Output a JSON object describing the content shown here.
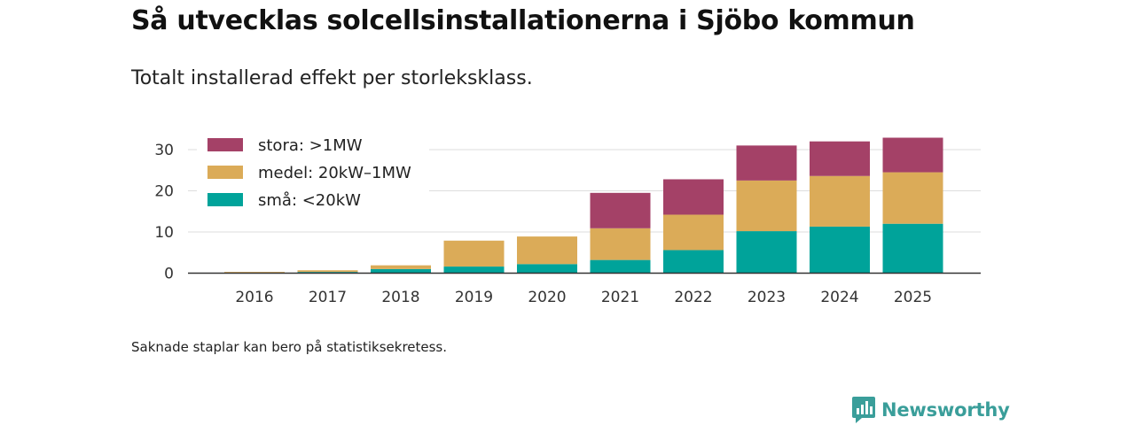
{
  "header": {
    "title": "Så utvecklas solcellsinstallationerna i Sjöbo kommun",
    "subtitle": "Totalt installerad effekt per storleksklass."
  },
  "footer": {
    "note": "Saknade staplar kan bero på statistiksekretess.",
    "brand": "Newsworthy"
  },
  "colors": {
    "stora": "#a44167",
    "medel": "#dbab58",
    "sma": "#00a39a",
    "grid": "#dddddd",
    "axis": "#333333",
    "brand": "#3a9e9a"
  },
  "chart_data": {
    "type": "bar",
    "stacked": true,
    "title": "Så utvecklas solcellsinstallationerna i Sjöbo kommun",
    "subtitle": "Totalt installerad effekt per storleksklass.",
    "xlabel": "",
    "ylabel": "",
    "ylim": [
      0,
      35
    ],
    "yticks": [
      0,
      10,
      20,
      30
    ],
    "grid": true,
    "legend_position": "top-left",
    "categories": [
      "2016",
      "2017",
      "2018",
      "2019",
      "2020",
      "2021",
      "2022",
      "2023",
      "2024",
      "2025"
    ],
    "series": [
      {
        "name": "små: <20kW",
        "key": "sma",
        "values": [
          0.1,
          0.3,
          1.0,
          1.6,
          2.2,
          3.2,
          5.6,
          10.2,
          11.3,
          12.0
        ]
      },
      {
        "name": "medel: 20kW–1MW",
        "key": "medel",
        "values": [
          0.2,
          0.4,
          0.9,
          6.3,
          6.7,
          7.7,
          8.6,
          12.3,
          12.3,
          12.5
        ]
      },
      {
        "name": "stora: >1MW",
        "key": "stora",
        "values": [
          0,
          0,
          0,
          0,
          0,
          8.6,
          8.6,
          8.5,
          8.4,
          8.4
        ]
      }
    ]
  }
}
